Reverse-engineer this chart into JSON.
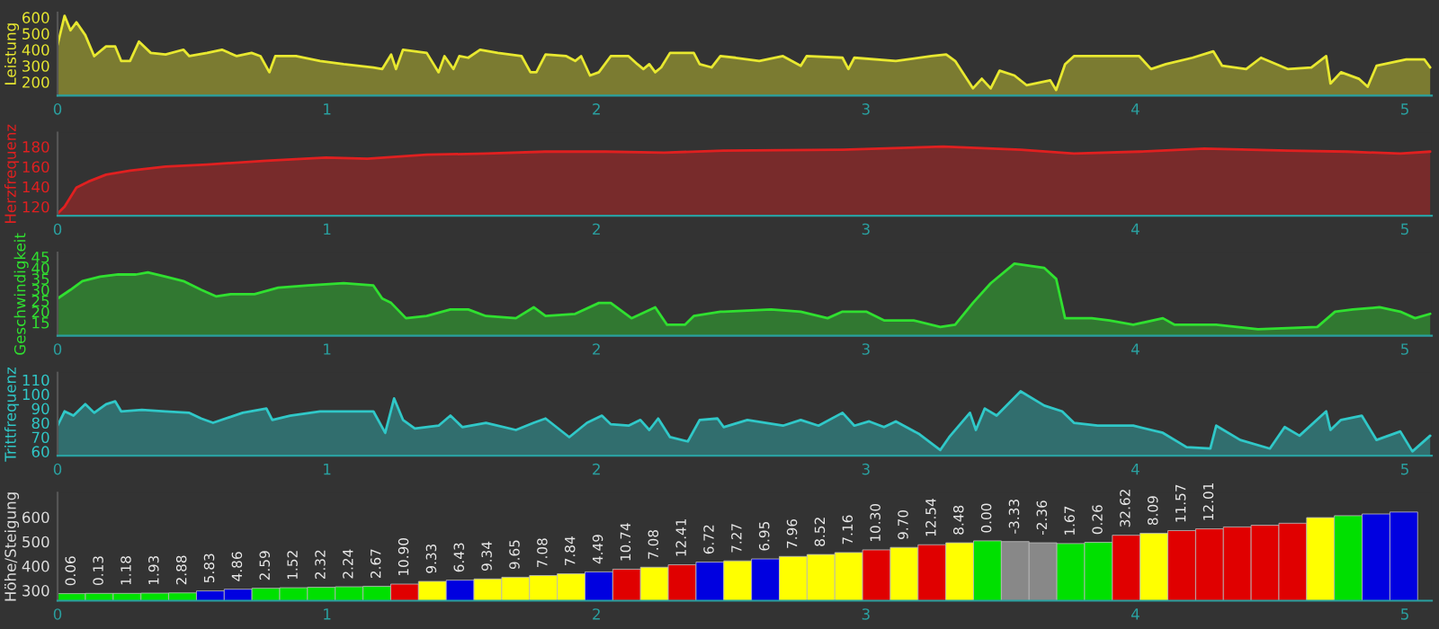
{
  "chart_data": [
    {
      "type": "area",
      "ylabel": "Leistung",
      "color": "#e8e830",
      "xlim": [
        0,
        5.1
      ],
      "xticks": [
        0,
        1,
        2,
        3,
        4,
        5
      ],
      "ylim": [
        115,
        630
      ],
      "yticks": [
        200,
        300,
        400,
        500,
        600
      ],
      "x": [
        0.0,
        0.026,
        0.048,
        0.07,
        0.103,
        0.136,
        0.18,
        0.214,
        0.236,
        0.269,
        0.302,
        0.346,
        0.401,
        0.467,
        0.489,
        0.555,
        0.61,
        0.665,
        0.72,
        0.753,
        0.786,
        0.808,
        0.885,
        0.974,
        1.062,
        1.172,
        1.205,
        1.238,
        1.256,
        1.282,
        1.37,
        1.414,
        1.436,
        1.469,
        1.491,
        1.524,
        1.568,
        1.634,
        1.722,
        1.755,
        1.777,
        1.811,
        1.888,
        1.921,
        1.943,
        1.976,
        2.009,
        2.053,
        2.119,
        2.152,
        2.174,
        2.196,
        2.218,
        2.24,
        2.273,
        2.361,
        2.383,
        2.427,
        2.46,
        2.516,
        2.604,
        2.692,
        2.758,
        2.78,
        2.913,
        2.935,
        2.957,
        3.111,
        3.243,
        3.298,
        3.331,
        3.397,
        3.43,
        3.463,
        3.496,
        3.551,
        3.596,
        3.684,
        3.706,
        3.739,
        3.772,
        4.014,
        4.058,
        4.113,
        4.212,
        4.289,
        4.322,
        4.411,
        4.466,
        4.565,
        4.653,
        4.708,
        4.724,
        4.763,
        4.829,
        4.862,
        4.895,
        5.005,
        5.072,
        5.094
      ],
      "values": [
        430,
        610,
        520,
        570,
        490,
        360,
        420,
        420,
        330,
        330,
        450,
        380,
        370,
        400,
        360,
        380,
        400,
        360,
        380,
        360,
        260,
        360,
        360,
        330,
        310,
        290,
        280,
        370,
        280,
        400,
        380,
        260,
        360,
        280,
        360,
        350,
        400,
        380,
        360,
        260,
        260,
        370,
        360,
        330,
        360,
        240,
        260,
        360,
        360,
        310,
        280,
        310,
        260,
        290,
        380,
        380,
        310,
        290,
        360,
        350,
        330,
        360,
        300,
        360,
        350,
        280,
        350,
        330,
        360,
        370,
        330,
        160,
        220,
        160,
        270,
        240,
        180,
        210,
        150,
        310,
        360,
        360,
        280,
        310,
        350,
        390,
        300,
        280,
        350,
        280,
        290,
        360,
        190,
        260,
        220,
        170,
        300,
        340,
        340,
        290
      ]
    },
    {
      "type": "area",
      "ylabel": "Herzfrequenz",
      "color": "#e02020",
      "xlim": [
        0,
        5.1
      ],
      "xticks": [
        0,
        1,
        2,
        3,
        4,
        5
      ],
      "ylim": [
        111,
        194
      ],
      "yticks": [
        120,
        140,
        160,
        180
      ],
      "x": [
        0.0,
        0.026,
        0.07,
        0.114,
        0.18,
        0.269,
        0.401,
        0.555,
        0.775,
        0.996,
        1.15,
        1.37,
        1.59,
        1.811,
        2.031,
        2.251,
        2.472,
        2.913,
        3.287,
        3.574,
        3.772,
        4.014,
        4.256,
        4.565,
        4.785,
        4.983,
        5.094
      ],
      "values": [
        113,
        120,
        139,
        145,
        152,
        156,
        160,
        162,
        166,
        169,
        168,
        172,
        173,
        175,
        175,
        174,
        176,
        177,
        180,
        177,
        173,
        175,
        178,
        176,
        175,
        173,
        175
      ]
    },
    {
      "type": "area",
      "ylabel": "Geschwindigkeit",
      "color": "#30e030",
      "xlim": [
        0,
        5.1
      ],
      "xticks": [
        0,
        1,
        2,
        3,
        4,
        5
      ],
      "ylim": [
        9,
        47
      ],
      "yticks": [
        15,
        20,
        25,
        30,
        35,
        40,
        45
      ],
      "x": [
        0.0,
        0.048,
        0.092,
        0.158,
        0.225,
        0.291,
        0.335,
        0.401,
        0.467,
        0.533,
        0.588,
        0.643,
        0.731,
        0.819,
        0.93,
        1.062,
        1.172,
        1.205,
        1.238,
        1.293,
        1.37,
        1.458,
        1.524,
        1.59,
        1.701,
        1.767,
        1.811,
        1.921,
        2.009,
        2.053,
        2.13,
        2.218,
        2.262,
        2.328,
        2.361,
        2.46,
        2.472,
        2.648,
        2.758,
        2.858,
        2.913,
        3.001,
        3.067,
        3.177,
        3.276,
        3.331,
        3.397,
        3.463,
        3.551,
        3.662,
        3.706,
        3.739,
        3.838,
        3.904,
        3.992,
        4.102,
        4.146,
        4.3,
        4.455,
        4.675,
        4.741,
        4.807,
        4.906,
        4.983,
        5.038,
        5.094
      ],
      "values": [
        26,
        30,
        34,
        36,
        37,
        37,
        38,
        36,
        34,
        30,
        27,
        28,
        28,
        31,
        32,
        33,
        32,
        26,
        24,
        17,
        18,
        21,
        21,
        18,
        17,
        22,
        18,
        19,
        24,
        24,
        17,
        22,
        14,
        14,
        18,
        20,
        20,
        21,
        20,
        17,
        20,
        20,
        16,
        16,
        13,
        14,
        24,
        33,
        42,
        40,
        35,
        17,
        17,
        16,
        14,
        17,
        14,
        14,
        12,
        13,
        20,
        21,
        22,
        20,
        17,
        19
      ]
    },
    {
      "type": "area",
      "ylabel": "Trittfrequenz",
      "color": "#30c8c8",
      "xlim": [
        0,
        5.1
      ],
      "xticks": [
        0,
        1,
        2,
        3,
        4,
        5
      ],
      "ylim": [
        57,
        115
      ],
      "yticks": [
        60,
        70,
        80,
        90,
        100,
        110
      ],
      "x": [
        0.0,
        0.026,
        0.059,
        0.103,
        0.136,
        0.18,
        0.214,
        0.236,
        0.313,
        0.401,
        0.489,
        0.533,
        0.577,
        0.687,
        0.775,
        0.797,
        0.863,
        0.974,
        1.172,
        1.216,
        1.249,
        1.282,
        1.326,
        1.414,
        1.458,
        1.502,
        1.59,
        1.701,
        1.767,
        1.811,
        1.899,
        1.965,
        2.02,
        2.053,
        2.119,
        2.163,
        2.196,
        2.229,
        2.273,
        2.339,
        2.383,
        2.449,
        2.472,
        2.56,
        2.692,
        2.758,
        2.824,
        2.913,
        2.957,
        3.012,
        3.067,
        3.111,
        3.199,
        3.276,
        3.309,
        3.386,
        3.408,
        3.441,
        3.485,
        3.574,
        3.662,
        3.728,
        3.772,
        3.86,
        3.992,
        4.102,
        4.19,
        4.278,
        4.3,
        4.389,
        4.499,
        4.554,
        4.609,
        4.708,
        4.724,
        4.763,
        4.84,
        4.895,
        4.983,
        5.028,
        5.094
      ],
      "values": [
        78,
        88,
        85,
        93,
        87,
        93,
        95,
        88,
        89,
        88,
        87,
        83,
        80,
        87,
        90,
        82,
        85,
        88,
        88,
        73,
        97,
        82,
        76,
        78,
        85,
        77,
        80,
        75,
        80,
        83,
        70,
        80,
        85,
        79,
        78,
        82,
        75,
        83,
        70,
        67,
        82,
        83,
        77,
        82,
        78,
        82,
        78,
        87,
        78,
        81,
        77,
        81,
        72,
        61,
        70,
        87,
        75,
        90,
        85,
        102,
        92,
        88,
        80,
        78,
        78,
        73,
        63,
        62,
        78,
        68,
        62,
        77,
        71,
        88,
        75,
        82,
        85,
        68,
        74,
        60,
        71
      ]
    },
    {
      "type": "bar",
      "ylabel": "Höhe/Steigung",
      "xlim": [
        0,
        5.1
      ],
      "xticks": [
        0,
        1,
        2,
        3,
        4,
        5
      ],
      "ylim": [
        258,
        700
      ],
      "yticks": [
        300,
        400,
        500,
        600
      ],
      "x": [
        0.052,
        0.155,
        0.258,
        0.361,
        0.464,
        0.567,
        0.67,
        0.773,
        0.876,
        0.979,
        1.082,
        1.185,
        1.288,
        1.391,
        1.494,
        1.597,
        1.7,
        1.803,
        1.906,
        2.009,
        2.112,
        2.215,
        2.318,
        2.421,
        2.524,
        2.627,
        2.73,
        2.833,
        2.936,
        3.039,
        3.142,
        3.245,
        3.348,
        3.451,
        3.554,
        3.657,
        3.76,
        3.863,
        3.966,
        4.069,
        4.172,
        4.275,
        4.378,
        4.481,
        4.584,
        4.687,
        4.79,
        4.893,
        4.996
      ],
      "values": [
        287,
        288,
        288,
        289,
        290,
        298,
        305,
        309,
        311,
        313,
        315,
        317,
        326,
        337,
        342,
        347,
        354,
        361,
        368,
        376,
        387,
        395,
        405,
        416,
        421,
        429,
        439,
        447,
        455,
        466,
        476,
        487,
        495,
        503,
        500,
        495,
        492,
        497,
        526,
        534,
        545,
        552,
        560,
        567,
        575,
        598,
        606,
        613,
        621
      ],
      "colors": [
        "#00e000",
        "#00e000",
        "#00e000",
        "#00e000",
        "#00e000",
        "#0000e0",
        "#0000e0",
        "#00e000",
        "#00e000",
        "#00e000",
        "#00e000",
        "#00e000",
        "#e00000",
        "#ffff00",
        "#0000e0",
        "#ffff00",
        "#ffff00",
        "#ffff00",
        "#ffff00",
        "#0000e0",
        "#e00000",
        "#ffff00",
        "#e00000",
        "#0000e0",
        "#ffff00",
        "#0000e0",
        "#ffff00",
        "#ffff00",
        "#ffff00",
        "#e00000",
        "#ffff00",
        "#e00000",
        "#ffff00",
        "#00e000",
        "#888888",
        "#888888",
        "#00e000",
        "#00e000",
        "#e00000",
        "#ffff00",
        "#e00000",
        "#e00000",
        "#e00000",
        "#e00000",
        "#e00000",
        "#ffff00",
        "#00e000",
        "#0000e0",
        "#0000e0"
      ],
      "annotations": [
        {
          "text": "0.06",
          "x": 0.052,
          "y": 287
        },
        {
          "text": "0.13",
          "x": 0.155,
          "y": 288
        },
        {
          "text": "1.18",
          "x": 0.258,
          "y": 288
        },
        {
          "text": "1.93",
          "x": 0.361,
          "y": 289
        },
        {
          "text": "2.88",
          "x": 0.464,
          "y": 290
        },
        {
          "text": "5.83",
          "x": 0.567,
          "y": 298
        },
        {
          "text": "4.86",
          "x": 0.67,
          "y": 305
        },
        {
          "text": "2.59",
          "x": 0.773,
          "y": 309
        },
        {
          "text": "1.52",
          "x": 0.876,
          "y": 311
        },
        {
          "text": "2.32",
          "x": 0.979,
          "y": 313
        },
        {
          "text": "2.24",
          "x": 1.082,
          "y": 315
        },
        {
          "text": "2.67",
          "x": 1.185,
          "y": 317
        },
        {
          "text": "10.90",
          "x": 1.288,
          "y": 326
        },
        {
          "text": "9.33",
          "x": 1.391,
          "y": 337
        },
        {
          "text": "6.43",
          "x": 1.494,
          "y": 342
        },
        {
          "text": "9.34",
          "x": 1.597,
          "y": 347
        },
        {
          "text": "9.65",
          "x": 1.7,
          "y": 354
        },
        {
          "text": "7.08",
          "x": 1.803,
          "y": 361
        },
        {
          "text": "7.84",
          "x": 1.906,
          "y": 368
        },
        {
          "text": "4.49",
          "x": 2.009,
          "y": 376
        },
        {
          "text": "10.74",
          "x": 2.112,
          "y": 387
        },
        {
          "text": "7.08",
          "x": 2.215,
          "y": 395
        },
        {
          "text": "12.41",
          "x": 2.318,
          "y": 405
        },
        {
          "text": "6.72",
          "x": 2.421,
          "y": 416
        },
        {
          "text": "7.27",
          "x": 2.524,
          "y": 421
        },
        {
          "text": "6.95",
          "x": 2.627,
          "y": 429
        },
        {
          "text": "7.96",
          "x": 2.73,
          "y": 439
        },
        {
          "text": "8.52",
          "x": 2.833,
          "y": 447
        },
        {
          "text": "7.16",
          "x": 2.936,
          "y": 455
        },
        {
          "text": "10.30",
          "x": 3.039,
          "y": 466
        },
        {
          "text": "9.70",
          "x": 3.142,
          "y": 476
        },
        {
          "text": "12.54",
          "x": 3.245,
          "y": 487
        },
        {
          "text": "8.48",
          "x": 3.348,
          "y": 495
        },
        {
          "text": "0.00",
          "x": 3.451,
          "y": 503
        },
        {
          "text": "-3.33",
          "x": 3.554,
          "y": 500
        },
        {
          "text": "-2.36",
          "x": 3.657,
          "y": 495
        },
        {
          "text": "1.67",
          "x": 3.76,
          "y": 492
        },
        {
          "text": "0.26",
          "x": 3.863,
          "y": 497
        },
        {
          "text": "32.62",
          "x": 3.966,
          "y": 526
        },
        {
          "text": "8.09",
          "x": 4.069,
          "y": 534
        },
        {
          "text": "11.57",
          "x": 4.172,
          "y": 545
        },
        {
          "text": "12.01",
          "x": 4.275,
          "y": 552
        }
      ]
    }
  ]
}
